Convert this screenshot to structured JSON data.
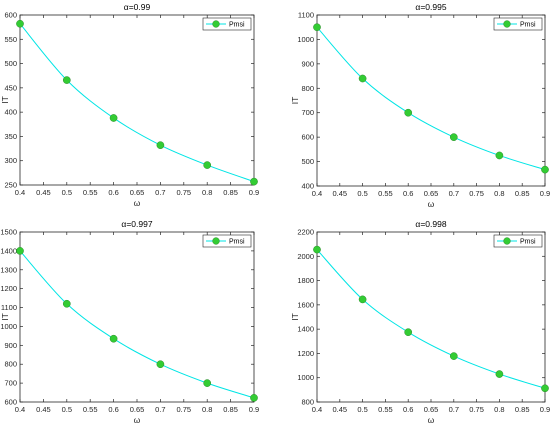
{
  "chart_data": [
    {
      "type": "line",
      "title": "α=0.99",
      "xlabel": "ω",
      "ylabel": "IT",
      "xlim": [
        0.4,
        0.9
      ],
      "ylim": [
        250,
        600
      ],
      "xticks": [
        0.4,
        0.45,
        0.5,
        0.55,
        0.6,
        0.65,
        0.7,
        0.75,
        0.8,
        0.85,
        0.9
      ],
      "yticks": [
        250,
        300,
        350,
        400,
        450,
        500,
        550,
        600
      ],
      "grid": false,
      "legend_position": "top-right",
      "series": [
        {
          "name": "Pmsi",
          "line_color": "#00e5e5",
          "marker_fill": "#33cc33",
          "x": [
            0.4,
            0.5,
            0.6,
            0.7,
            0.8,
            0.9
          ],
          "y": [
            582,
            466,
            388,
            332,
            291,
            257
          ]
        }
      ]
    },
    {
      "type": "line",
      "title": "α=0.995",
      "xlabel": "ω",
      "ylabel": "IT",
      "xlim": [
        0.4,
        0.9
      ],
      "ylim": [
        400,
        1100
      ],
      "xticks": [
        0.4,
        0.45,
        0.5,
        0.55,
        0.6,
        0.65,
        0.7,
        0.75,
        0.8,
        0.85,
        0.9
      ],
      "yticks": [
        400,
        500,
        600,
        700,
        800,
        900,
        1000,
        1100
      ],
      "grid": false,
      "legend_position": "top-right",
      "series": [
        {
          "name": "Pmsi",
          "line_color": "#00e5e5",
          "marker_fill": "#33cc33",
          "x": [
            0.4,
            0.5,
            0.6,
            0.7,
            0.8,
            0.9
          ],
          "y": [
            1050,
            840,
            700,
            600,
            525,
            467
          ]
        }
      ]
    },
    {
      "type": "line",
      "title": "α=0.997",
      "xlabel": "ω",
      "ylabel": "IT",
      "xlim": [
        0.4,
        0.9
      ],
      "ylim": [
        600,
        1500
      ],
      "xticks": [
        0.4,
        0.45,
        0.5,
        0.55,
        0.6,
        0.65,
        0.7,
        0.75,
        0.8,
        0.85,
        0.9
      ],
      "yticks": [
        600,
        700,
        800,
        900,
        1000,
        1100,
        1200,
        1300,
        1400,
        1500
      ],
      "grid": false,
      "legend_position": "top-right",
      "series": [
        {
          "name": "Pmsi",
          "line_color": "#00e5e5",
          "marker_fill": "#33cc33",
          "x": [
            0.4,
            0.5,
            0.6,
            0.7,
            0.8,
            0.9
          ],
          "y": [
            1400,
            1120,
            935,
            800,
            700,
            622
          ]
        }
      ]
    },
    {
      "type": "line",
      "title": "α=0.998",
      "xlabel": "ω",
      "ylabel": "IT",
      "xlim": [
        0.4,
        0.9
      ],
      "ylim": [
        800,
        2200
      ],
      "xticks": [
        0.4,
        0.45,
        0.5,
        0.55,
        0.6,
        0.65,
        0.7,
        0.75,
        0.8,
        0.85,
        0.9
      ],
      "yticks": [
        800,
        1000,
        1200,
        1400,
        1600,
        1800,
        2000,
        2200
      ],
      "grid": false,
      "legend_position": "top-right",
      "series": [
        {
          "name": "Pmsi",
          "line_color": "#00e5e5",
          "marker_fill": "#33cc33",
          "x": [
            0.4,
            0.5,
            0.6,
            0.7,
            0.8,
            0.9
          ],
          "y": [
            2055,
            1645,
            1375,
            1178,
            1030,
            913
          ]
        }
      ]
    }
  ]
}
